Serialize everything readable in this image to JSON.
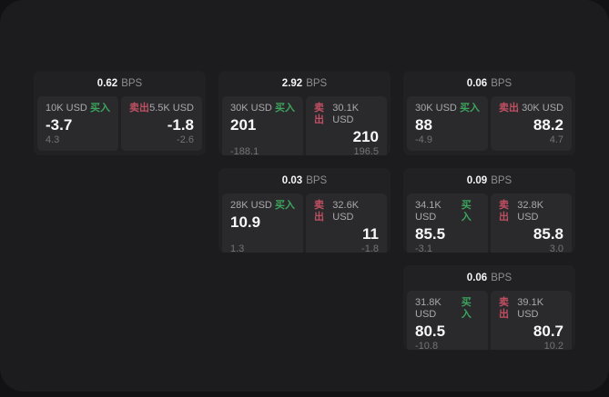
{
  "labels": {
    "bps_unit": "BPS",
    "buy": "买入",
    "sell": "卖出"
  },
  "colors": {
    "buy": "#3ca45c",
    "sell": "#c14f62",
    "panel": "#2a2a2d",
    "card": "#212124",
    "page": "#1c1c1e",
    "outer": "#121214"
  },
  "cards": [
    {
      "bps": "0.62",
      "buy": {
        "amount": "10K USD",
        "value": "-3.7",
        "sub": "4.3"
      },
      "sell": {
        "amount": "5.5K USD",
        "value": "-1.8",
        "sub": "-2.6"
      }
    },
    {
      "bps": "2.92",
      "buy": {
        "amount": "30K USD",
        "value": "201",
        "sub": "-188.1"
      },
      "sell": {
        "amount": "30.1K USD",
        "value": "210",
        "sub": "196.5"
      }
    },
    {
      "bps": "0.06",
      "buy": {
        "amount": "30K USD",
        "value": "88",
        "sub": "-4.9"
      },
      "sell": {
        "amount": "30K USD",
        "value": "88.2",
        "sub": "4.7"
      }
    },
    {
      "bps": "0.03",
      "buy": {
        "amount": "28K USD",
        "value": "10.9",
        "sub": "1.3"
      },
      "sell": {
        "amount": "32.6K USD",
        "value": "11",
        "sub": "-1.8"
      }
    },
    {
      "bps": "0.09",
      "buy": {
        "amount": "34.1K USD",
        "value": "85.5",
        "sub": "-3.1"
      },
      "sell": {
        "amount": "32.8K USD",
        "value": "85.8",
        "sub": "3.0"
      }
    },
    {
      "bps": "0.06",
      "buy": {
        "amount": "31.8K USD",
        "value": "80.5",
        "sub": "-10.8"
      },
      "sell": {
        "amount": "39.1K USD",
        "value": "80.7",
        "sub": "10.2"
      }
    }
  ]
}
